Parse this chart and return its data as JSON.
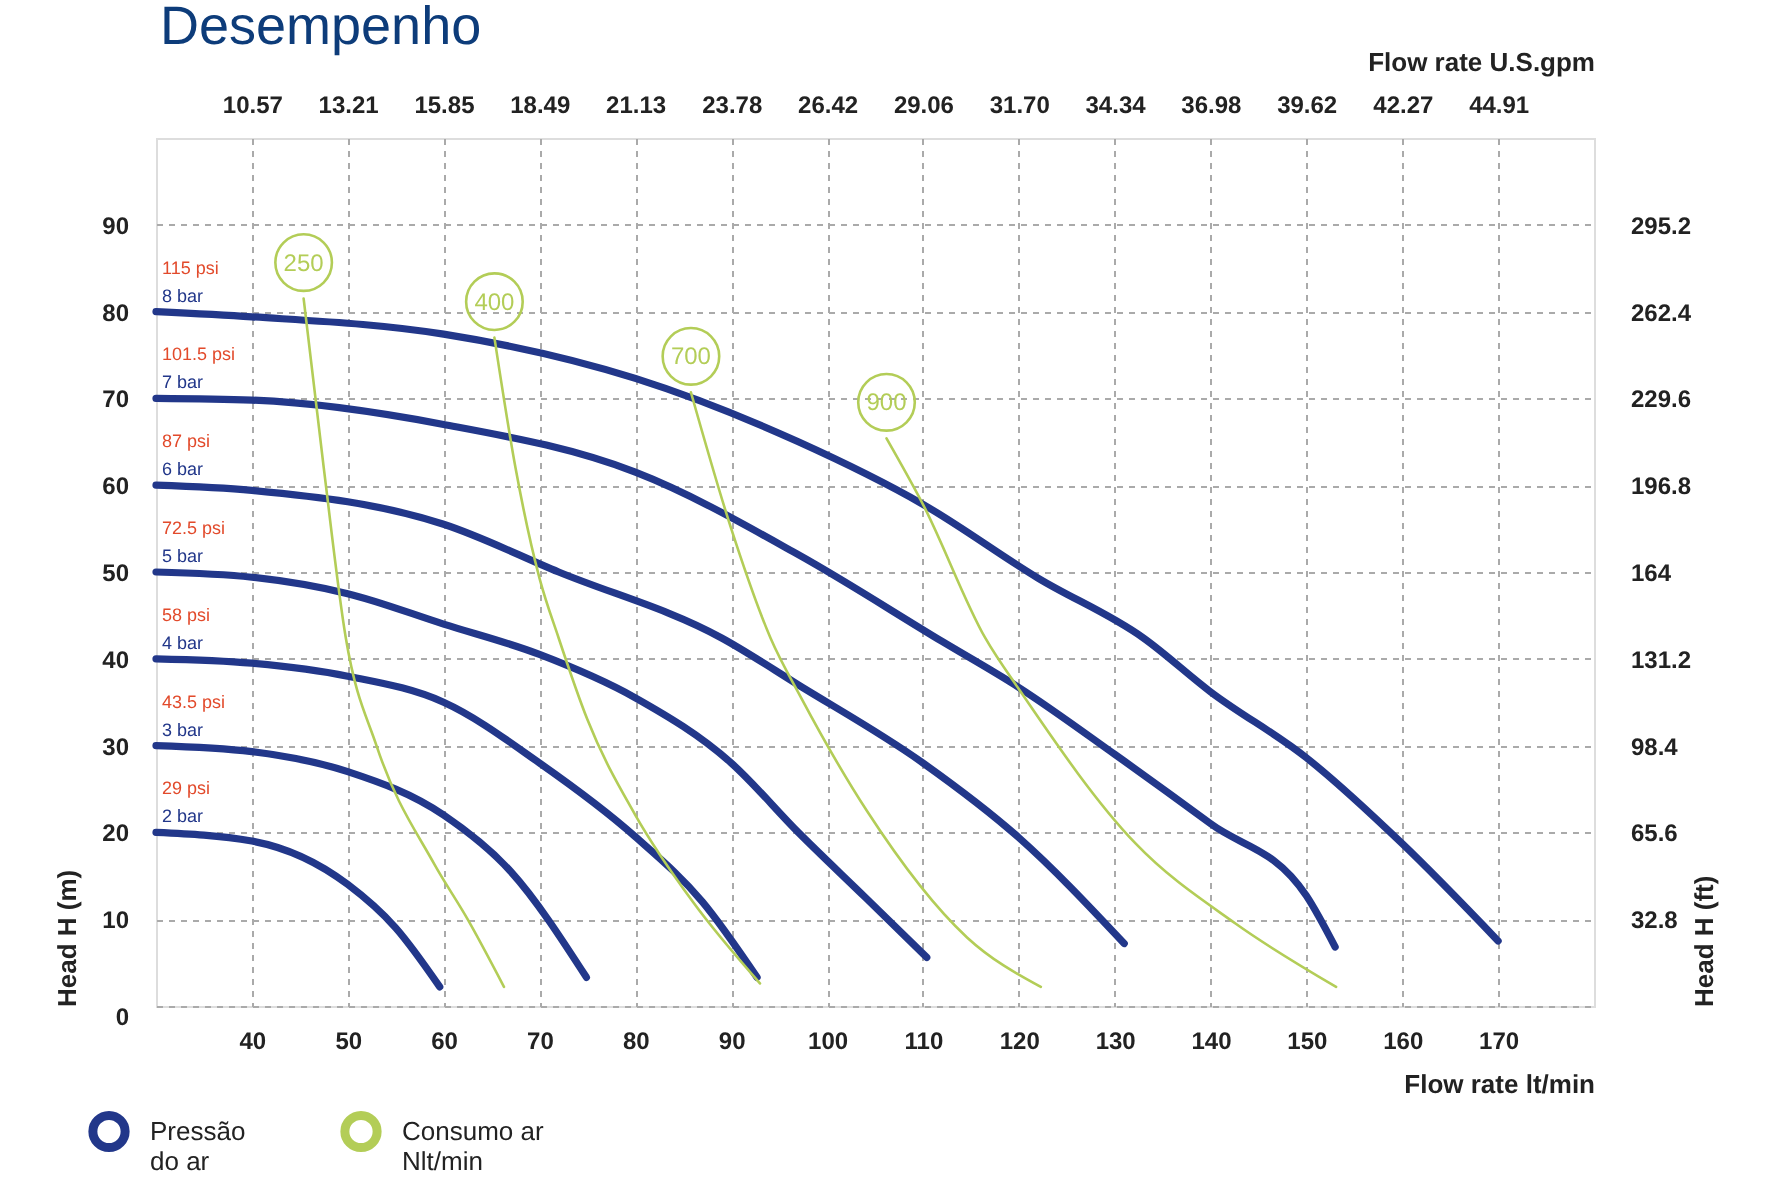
{
  "chart_data": {
    "type": "line",
    "title": "Desempenho",
    "xlabel": "Flow rate  lt/min",
    "x2label": "Flow rate U.S.gpm",
    "ylabel": "Head H (m)",
    "y2label": "Head H (ft)",
    "xlim": [
      30,
      180
    ],
    "xticks": [
      40,
      50,
      60,
      70,
      80,
      90,
      100,
      110,
      120,
      130,
      140,
      150,
      160,
      170
    ],
    "x2lim": [
      7.93,
      47.55
    ],
    "x2ticks": [
      10.57,
      13.21,
      15.85,
      18.49,
      21.13,
      23.78,
      26.42,
      29.06,
      {
        "value": 31.7,
        "label": "31.70"
      },
      34.34,
      36.98,
      39.62,
      42.27,
      44.91
    ],
    "ylim": [
      0,
      100
    ],
    "yticks": [
      0,
      10,
      20,
      30,
      40,
      50,
      60,
      70,
      80,
      90
    ],
    "y2lim": [
      0,
      328
    ],
    "y2ticks": [
      32.8,
      65.6,
      98.4,
      131.2,
      164,
      196.8,
      229.6,
      262.4,
      295.2
    ],
    "grid": true,
    "legend": "bottom left",
    "series": [
      {
        "name": "Pressão\ndo ar",
        "color": "#22378a",
        "x": [
          30,
          40,
          60,
          80,
          97,
          110,
          122,
          133,
          140,
          150,
          160,
          170,
          null,
          30,
          40,
          60,
          80,
          97,
          112,
          120,
          130,
          140,
          150,
          153,
          null,
          30,
          40,
          60,
          72,
          89,
          97,
          110,
          120,
          131,
          null,
          30,
          40,
          50,
          60,
          70,
          80,
          90,
          97,
          104,
          110.4,
          null,
          30,
          40,
          50,
          60,
          70,
          80,
          87,
          92.7,
          null,
          30,
          40,
          50,
          60,
          67,
          74.9,
          null,
          30,
          40,
          50,
          55,
          59.6
        ],
        "values": [
          80,
          79.4,
          77.4,
          72.3,
          65,
          57.8,
          49.3,
          42.4,
          36.2,
          28.6,
          18.7,
          7.5,
          null,
          70,
          69.8,
          67,
          61.5,
          52,
          42,
          36.7,
          29,
          21,
          12.7,
          6.8,
          null,
          60,
          59.4,
          55.5,
          50,
          42.4,
          37,
          28,
          19.4,
          7.2,
          null,
          50,
          49.4,
          47.5,
          44,
          40.5,
          35.5,
          28,
          20,
          12.5,
          5.6,
          null,
          40,
          39.5,
          38,
          35,
          28,
          19.5,
          12,
          3.3,
          null,
          30,
          29.3,
          27,
          22,
          15.5,
          3.3,
          null,
          20,
          19,
          14,
          9,
          2.2
        ]
      },
      {
        "name": "Consumo ar\nNlt/min",
        "color": "#b3cd57",
        "x": [
          45.4,
          47.5,
          49.8,
          53,
          59,
          62.5,
          66.3,
          null,
          65.3,
          67.5,
          70,
          72,
          75,
          80,
          86,
          93,
          null,
          85.8,
          90,
          94.1,
          97.3,
          104.2,
          114.6,
          122.3,
          null,
          106.2,
          110,
          116.5,
          120.2,
          132.2,
          142.6,
          153.1
        ],
        "values": [
          81.5,
          62,
          42.4,
          30,
          16.4,
          10,
          2.2,
          null,
          77,
          62,
          49.3,
          42.4,
          33,
          22,
          12,
          2.6,
          null,
          70.7,
          55,
          42.4,
          35.5,
          22.4,
          7.9,
          2.2,
          null,
          65.4,
          57.8,
          42.4,
          36.2,
          18.7,
          9.5,
          2.2
        ]
      }
    ],
    "annotations": [
      {
        "text": "115 psi",
        "x": 30,
        "y": 80
      },
      {
        "text": "8 bar",
        "x": 30,
        "y": 80
      },
      {
        "text": "101.5 psi",
        "x": 30,
        "y": 70
      },
      {
        "text": "7 bar",
        "x": 30,
        "y": 70
      },
      {
        "text": "87 psi",
        "x": 30,
        "y": 60
      },
      {
        "text": "6 bar",
        "x": 30,
        "y": 60
      },
      {
        "text": "72.5 psi",
        "x": 30,
        "y": 50
      },
      {
        "text": "5 bar",
        "x": 30,
        "y": 50
      },
      {
        "text": "58 psi",
        "x": 30,
        "y": 40
      },
      {
        "text": "4 bar",
        "x": 30,
        "y": 40
      },
      {
        "text": "43.5 psi",
        "x": 30,
        "y": 30
      },
      {
        "text": "3 bar",
        "x": 30,
        "y": 30
      },
      {
        "text": "29 psi",
        "x": 30,
        "y": 20
      },
      {
        "text": "2 bar",
        "x": 30,
        "y": 20
      },
      {
        "text": "250",
        "x": 45.4,
        "y": 81.5
      },
      {
        "text": "400",
        "x": 65.3,
        "y": 77
      },
      {
        "text": "700",
        "x": 85.8,
        "y": 70.7
      },
      {
        "text": "900",
        "x": 106.2,
        "y": 65.4
      }
    ]
  }
}
